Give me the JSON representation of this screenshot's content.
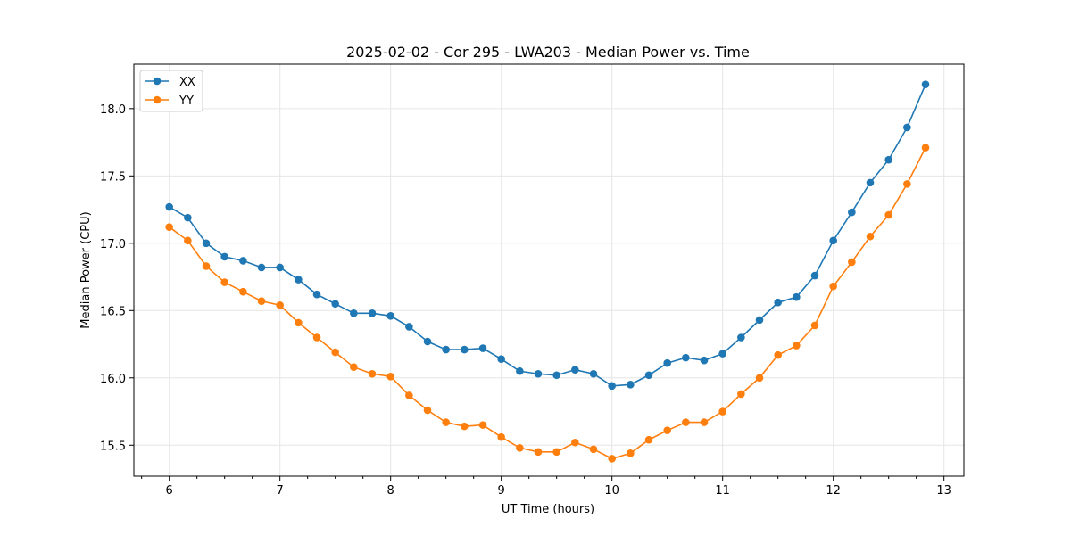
{
  "chart_data": {
    "type": "line",
    "title": "2025-02-02 - Cor 295 - LWA203 - Median Power vs. Time",
    "xlabel": "UT Time (hours)",
    "ylabel": "Median Power (CPU)",
    "xlim": [
      5.68,
      13.18
    ],
    "ylim": [
      15.27,
      18.33
    ],
    "xticks": [
      6,
      7,
      8,
      9,
      10,
      11,
      12,
      13
    ],
    "xtick_labels": [
      "6",
      "7",
      "8",
      "9",
      "10",
      "11",
      "12",
      "13"
    ],
    "yticks": [
      15.5,
      16.0,
      16.5,
      17.0,
      17.5,
      18.0
    ],
    "ytick_labels": [
      "15.5",
      "16.0",
      "16.5",
      "17.0",
      "17.5",
      "18.0"
    ],
    "grid": true,
    "legend_position": "top-left",
    "x": [
      6.0,
      6.1667,
      6.3333,
      6.5,
      6.6667,
      6.8333,
      7.0,
      7.1667,
      7.3333,
      7.5,
      7.6667,
      7.8333,
      8.0,
      8.1667,
      8.3333,
      8.5,
      8.6667,
      8.8333,
      9.0,
      9.1667,
      9.3333,
      9.5,
      9.6667,
      9.8333,
      10.0,
      10.1667,
      10.3333,
      10.5,
      10.6667,
      10.8333,
      11.0,
      11.1667,
      11.3333,
      11.5,
      11.6667,
      11.8333,
      12.0,
      12.1667,
      12.3333,
      12.5,
      12.6667,
      12.8333
    ],
    "series": [
      {
        "name": "XX",
        "color": "#1f77b4",
        "values": [
          17.27,
          17.19,
          17.0,
          16.9,
          16.87,
          16.82,
          16.82,
          16.73,
          16.62,
          16.55,
          16.48,
          16.48,
          16.46,
          16.38,
          16.27,
          16.21,
          16.21,
          16.22,
          16.14,
          16.05,
          16.03,
          16.02,
          16.06,
          16.03,
          15.94,
          15.95,
          16.02,
          16.11,
          16.15,
          16.13,
          16.18,
          16.3,
          16.43,
          16.56,
          16.6,
          16.76,
          17.02,
          17.23,
          17.45,
          17.62,
          17.86,
          18.18
        ]
      },
      {
        "name": "YY",
        "color": "#ff7f0e",
        "values": [
          17.12,
          17.02,
          16.83,
          16.71,
          16.64,
          16.57,
          16.54,
          16.41,
          16.3,
          16.19,
          16.08,
          16.03,
          16.01,
          15.87,
          15.76,
          15.67,
          15.64,
          15.65,
          15.56,
          15.48,
          15.45,
          15.45,
          15.52,
          15.47,
          15.4,
          15.44,
          15.54,
          15.61,
          15.67,
          15.67,
          15.75,
          15.88,
          16.0,
          16.17,
          16.24,
          16.39,
          16.68,
          16.86,
          17.05,
          17.21,
          17.44,
          17.71
        ]
      }
    ]
  }
}
